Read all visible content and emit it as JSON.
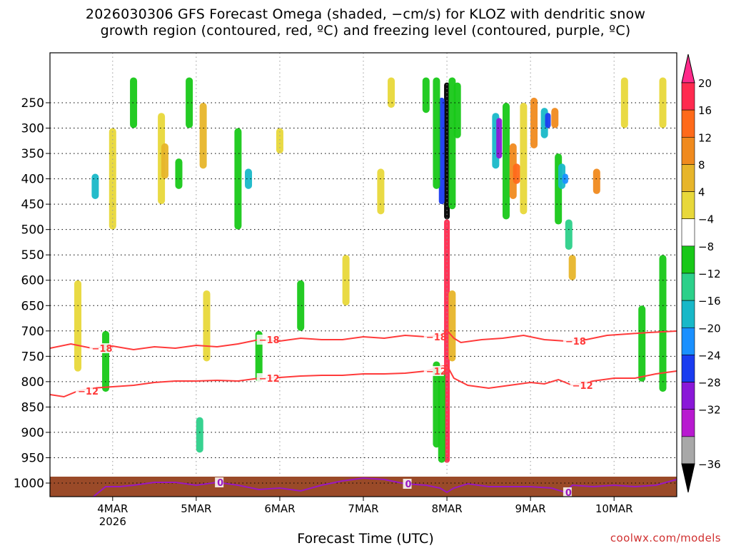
{
  "title": {
    "line1": "2026030306 GFS Forecast Omega (shaded, −cm/s) for KLOZ with dendritic snow",
    "line2": "growth region (contoured, red, ºC) and freezing level (contoured, purple, ºC)"
  },
  "xlabel": "Forecast Time (UTC)",
  "credit": "coolwx.com/models",
  "chart_data": {
    "type": "heatmap",
    "title": "2026030306 GFS Forecast Omega (shaded, −cm/s) for KLOZ",
    "xlabel": "Forecast Time (UTC)",
    "ylabel": "Pressure (hPa)",
    "x_ticks": [
      {
        "label": "4MAR",
        "sub": "2026",
        "hours": 18
      },
      {
        "label": "5MAR",
        "sub": "",
        "hours": 42
      },
      {
        "label": "6MAR",
        "sub": "",
        "hours": 66
      },
      {
        "label": "7MAR",
        "sub": "",
        "hours": 90
      },
      {
        "label": "8MAR",
        "sub": "",
        "hours": 114
      },
      {
        "label": "9MAR",
        "sub": "",
        "hours": 138
      },
      {
        "label": "10MAR",
        "sub": "",
        "hours": 162
      }
    ],
    "x_range_hours": [
      0,
      180
    ],
    "y_ticks": [
      250,
      300,
      350,
      400,
      450,
      500,
      550,
      600,
      650,
      700,
      750,
      800,
      850,
      900,
      950,
      1000
    ],
    "y_range_hpa": [
      200,
      1000
    ],
    "colorbar": {
      "labels": [
        "20",
        "16",
        "12",
        "8",
        "4",
        "−4",
        "−8",
        "−12",
        "−16",
        "−20",
        "−24",
        "−28",
        "−32",
        "−36"
      ],
      "colors": [
        "#ff2a4f",
        "#ff6a1a",
        "#f08a1e",
        "#e7b52a",
        "#e8d83a",
        "#ffffff",
        "#18c818",
        "#2cd08a",
        "#18b8c8",
        "#1a90ff",
        "#1a3cf0",
        "#8a18d8",
        "#b81ad0",
        "#a8a8a8",
        "#000000"
      ],
      "top_arrow": "#ff2a8a",
      "bottom_arrow": "#000000"
    },
    "contours": [
      {
        "value": -18,
        "color": "#ff3a3a",
        "label": "−18",
        "points": [
          [
            0,
            488
          ],
          [
            6,
            482
          ],
          [
            12,
            488
          ],
          [
            18,
            485
          ],
          [
            24,
            490
          ],
          [
            30,
            486
          ],
          [
            36,
            488
          ],
          [
            42,
            484
          ],
          [
            48,
            486
          ],
          [
            54,
            482
          ],
          [
            60,
            476
          ],
          [
            66,
            478
          ],
          [
            72,
            474
          ],
          [
            78,
            476
          ],
          [
            84,
            476
          ],
          [
            90,
            472
          ],
          [
            96,
            474
          ],
          [
            102,
            470
          ],
          [
            108,
            472
          ],
          [
            112,
            470
          ],
          [
            114,
            463
          ],
          [
            116,
            474
          ],
          [
            118,
            480
          ],
          [
            124,
            476
          ],
          [
            130,
            474
          ],
          [
            136,
            470
          ],
          [
            142,
            476
          ],
          [
            148,
            478
          ],
          [
            154,
            476
          ],
          [
            160,
            470
          ],
          [
            166,
            468
          ],
          [
            172,
            466
          ],
          [
            180,
            464
          ]
        ]
      },
      {
        "value": -12,
        "color": "#ff3a3a",
        "label": "−12",
        "points": [
          [
            0,
            553
          ],
          [
            4,
            556
          ],
          [
            8,
            548
          ],
          [
            12,
            544
          ],
          [
            18,
            542
          ],
          [
            24,
            540
          ],
          [
            30,
            536
          ],
          [
            36,
            534
          ],
          [
            42,
            534
          ],
          [
            48,
            533
          ],
          [
            54,
            534
          ],
          [
            60,
            530
          ],
          [
            66,
            529
          ],
          [
            72,
            527
          ],
          [
            78,
            526
          ],
          [
            84,
            526
          ],
          [
            90,
            524
          ],
          [
            96,
            524
          ],
          [
            102,
            523
          ],
          [
            108,
            520
          ],
          [
            112,
            514
          ],
          [
            114,
            512
          ],
          [
            116,
            530
          ],
          [
            120,
            540
          ],
          [
            126,
            544
          ],
          [
            132,
            540
          ],
          [
            138,
            536
          ],
          [
            142,
            538
          ],
          [
            146,
            532
          ],
          [
            150,
            540
          ],
          [
            156,
            534
          ],
          [
            162,
            530
          ],
          [
            168,
            530
          ],
          [
            174,
            524
          ],
          [
            180,
            520
          ]
        ]
      },
      {
        "value": 0,
        "color": "#9a18c0",
        "label": "0",
        "points": [
          [
            0,
            753
          ],
          [
            4,
            752
          ],
          [
            6,
            720
          ],
          [
            8,
            712
          ],
          [
            12,
            698
          ],
          [
            16,
            682
          ],
          [
            20,
            682
          ],
          [
            24,
            680
          ],
          [
            30,
            676
          ],
          [
            36,
            676
          ],
          [
            42,
            680
          ],
          [
            48,
            676
          ],
          [
            54,
            680
          ],
          [
            60,
            686
          ],
          [
            66,
            684
          ],
          [
            72,
            688
          ],
          [
            78,
            680
          ],
          [
            84,
            674
          ],
          [
            90,
            670
          ],
          [
            96,
            672
          ],
          [
            102,
            678
          ],
          [
            108,
            680
          ],
          [
            112,
            684
          ],
          [
            114,
            690
          ],
          [
            116,
            684
          ],
          [
            120,
            678
          ],
          [
            126,
            682
          ],
          [
            132,
            682
          ],
          [
            138,
            682
          ],
          [
            144,
            684
          ],
          [
            148,
            690
          ],
          [
            150,
            680
          ],
          [
            156,
            682
          ],
          [
            162,
            680
          ],
          [
            168,
            682
          ],
          [
            174,
            680
          ],
          [
            180,
            672
          ]
        ]
      }
    ],
    "omega_patches": [
      {
        "x": 114,
        "p0": 210,
        "p1": 480,
        "v": -36
      },
      {
        "x": 114,
        "p0": 480,
        "p1": 960,
        "v": 20
      },
      {
        "x": 112.5,
        "p0": 240,
        "p1": 450,
        "v": -24
      },
      {
        "x": 112.5,
        "p0": 780,
        "p1": 960,
        "v": -8
      },
      {
        "x": 111,
        "p0": 200,
        "p1": 420,
        "v": -8
      },
      {
        "x": 111,
        "p0": 760,
        "p1": 930,
        "v": -8
      },
      {
        "x": 115.5,
        "p0": 200,
        "p1": 460,
        "v": -8
      },
      {
        "x": 115.5,
        "p0": 620,
        "p1": 760,
        "v": 8
      },
      {
        "x": 117,
        "p0": 210,
        "p1": 320,
        "v": -8
      },
      {
        "x": 128,
        "p0": 270,
        "p1": 380,
        "v": -16
      },
      {
        "x": 129,
        "p0": 280,
        "p1": 360,
        "v": -28
      },
      {
        "x": 131,
        "p0": 250,
        "p1": 480,
        "v": -8
      },
      {
        "x": 133,
        "p0": 330,
        "p1": 440,
        "v": 12
      },
      {
        "x": 134,
        "p0": 370,
        "p1": 410,
        "v": 16
      },
      {
        "x": 136,
        "p0": 250,
        "p1": 470,
        "v": 4
      },
      {
        "x": 139,
        "p0": 240,
        "p1": 340,
        "v": 12
      },
      {
        "x": 142,
        "p0": 260,
        "p1": 320,
        "v": -16
      },
      {
        "x": 143,
        "p0": 270,
        "p1": 300,
        "v": -24
      },
      {
        "x": 145,
        "p0": 260,
        "p1": 300,
        "v": 12
      },
      {
        "x": 146,
        "p0": 350,
        "p1": 490,
        "v": -8
      },
      {
        "x": 147,
        "p0": 370,
        "p1": 420,
        "v": -16
      },
      {
        "x": 148,
        "p0": 390,
        "p1": 410,
        "v": -20
      },
      {
        "x": 150,
        "p0": 550,
        "p1": 600,
        "v": 8
      },
      {
        "x": 149,
        "p0": 480,
        "p1": 540,
        "v": -12
      },
      {
        "x": 157,
        "p0": 380,
        "p1": 430,
        "v": 12
      },
      {
        "x": 165,
        "p0": 200,
        "p1": 300,
        "v": 4
      },
      {
        "x": 176,
        "p0": 200,
        "p1": 300,
        "v": 4
      },
      {
        "x": 13,
        "p0": 390,
        "p1": 440,
        "v": -16
      },
      {
        "x": 18,
        "p0": 300,
        "p1": 500,
        "v": 4
      },
      {
        "x": 32,
        "p0": 270,
        "p1": 450,
        "v": 4
      },
      {
        "x": 33,
        "p0": 330,
        "p1": 400,
        "v": 8
      },
      {
        "x": 37,
        "p0": 360,
        "p1": 420,
        "v": -8
      },
      {
        "x": 40,
        "p0": 200,
        "p1": 300,
        "v": -8
      },
      {
        "x": 43,
        "p0": 870,
        "p1": 940,
        "v": -12
      },
      {
        "x": 44,
        "p0": 250,
        "p1": 380,
        "v": 8
      },
      {
        "x": 54,
        "p0": 300,
        "p1": 500,
        "v": -8
      },
      {
        "x": 57,
        "p0": 380,
        "p1": 420,
        "v": -16
      },
      {
        "x": 66,
        "p0": 300,
        "p1": 350,
        "v": 4
      },
      {
        "x": 72,
        "p0": 600,
        "p1": 700,
        "v": -8
      },
      {
        "x": 98,
        "p0": 200,
        "p1": 260,
        "v": 4
      },
      {
        "x": 108,
        "p0": 200,
        "p1": 270,
        "v": -8
      },
      {
        "x": 8,
        "p0": 600,
        "p1": 780,
        "v": 4
      },
      {
        "x": 16,
        "p0": 700,
        "p1": 820,
        "v": -8
      },
      {
        "x": 24,
        "p0": 200,
        "p1": 300,
        "v": -8
      },
      {
        "x": 45,
        "p0": 620,
        "p1": 760,
        "v": 4
      },
      {
        "x": 60,
        "p0": 700,
        "p1": 800,
        "v": -8
      },
      {
        "x": 85,
        "p0": 550,
        "p1": 650,
        "v": 4
      },
      {
        "x": 95,
        "p0": 380,
        "p1": 470,
        "v": 4
      },
      {
        "x": 170,
        "p0": 650,
        "p1": 800,
        "v": -8
      },
      {
        "x": 176,
        "p0": 550,
        "p1": 820,
        "v": -8
      }
    ]
  }
}
